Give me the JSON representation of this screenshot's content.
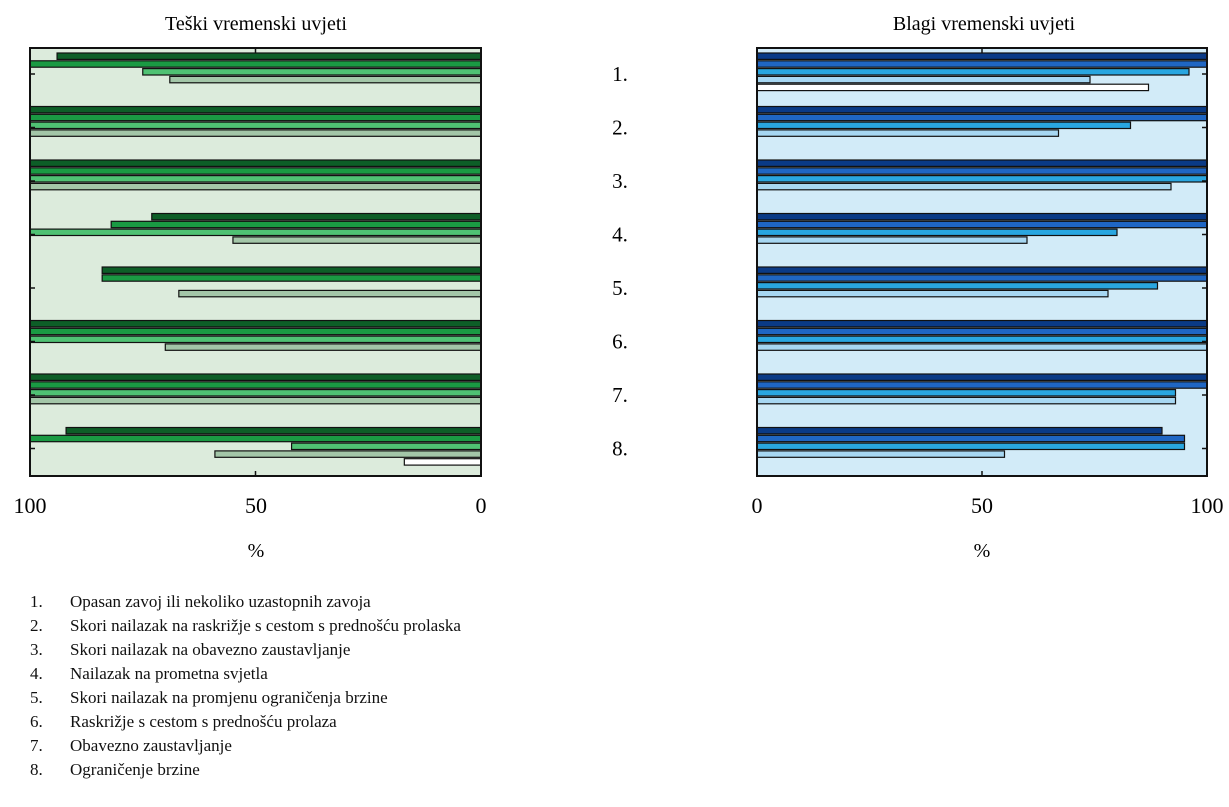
{
  "chart_data": [
    {
      "type": "bar",
      "orientation": "horizontal",
      "title": "Teški vremenski uvjeti",
      "xlabel": "%",
      "x_reversed": true,
      "xlim": [
        0,
        100
      ],
      "xticks": [
        "100",
        "50",
        "0"
      ],
      "background": "#dcebdc",
      "colors": [
        "#0d5e27",
        "#1a9a43",
        "#4fc173",
        "#a3c6a8"
      ],
      "groups": [
        [
          94,
          100,
          75,
          69
        ],
        [
          100,
          100,
          100,
          100
        ],
        [
          100,
          100,
          100,
          100
        ],
        [
          73,
          82,
          100,
          55
        ],
        [
          84,
          84,
          0,
          67
        ],
        [
          100,
          100,
          100,
          70
        ],
        [
          100,
          100,
          100,
          100
        ],
        [
          92,
          100,
          42,
          59
        ]
      ],
      "extra_bar": {
        "group": 8,
        "value": 17
      }
    },
    {
      "type": "bar",
      "orientation": "horizontal",
      "title": "Blagi vremenski uvjeti",
      "xlabel": "%",
      "x_reversed": false,
      "xlim": [
        0,
        100
      ],
      "xticks": [
        "0",
        "50",
        "100"
      ],
      "background": "#d2ebf8",
      "colors": [
        "#0a3a86",
        "#1f66c3",
        "#29a6e0",
        "#a7d7f2"
      ],
      "groups": [
        [
          100,
          100,
          96,
          74
        ],
        [
          100,
          100,
          83,
          67
        ],
        [
          100,
          100,
          100,
          92
        ],
        [
          100,
          100,
          80,
          60
        ],
        [
          100,
          100,
          89,
          78
        ],
        [
          100,
          100,
          100,
          100
        ],
        [
          100,
          100,
          93,
          93
        ],
        [
          90,
          95,
          95,
          55
        ]
      ],
      "extra_bar": {
        "group": 1,
        "value": 87
      }
    }
  ],
  "category_labels": [
    "1.",
    "2.",
    "3.",
    "4.",
    "5.",
    "6.",
    "7.",
    "8."
  ],
  "legend": [
    {
      "num": "1.",
      "text": "Opasan zavoj ili nekoliko uzastopnih zavoja"
    },
    {
      "num": "2.",
      "text": "Skori nailazak na raskrižje s cestom s prednošću prolaska"
    },
    {
      "num": "3.",
      "text": "Skori nailazak na obavezno zaustavljanje"
    },
    {
      "num": "4.",
      "text": "Nailazak na prometna svjetla"
    },
    {
      "num": "5.",
      "text": "Skori nailazak na promjenu ograničenja brzine"
    },
    {
      "num": "6.",
      "text": "Raskrižje s cestom s prednošću prolaza"
    },
    {
      "num": "7.",
      "text": "Obavezno zaustavljanje"
    },
    {
      "num": "8.",
      "text": "Ograničenje brzine"
    }
  ]
}
